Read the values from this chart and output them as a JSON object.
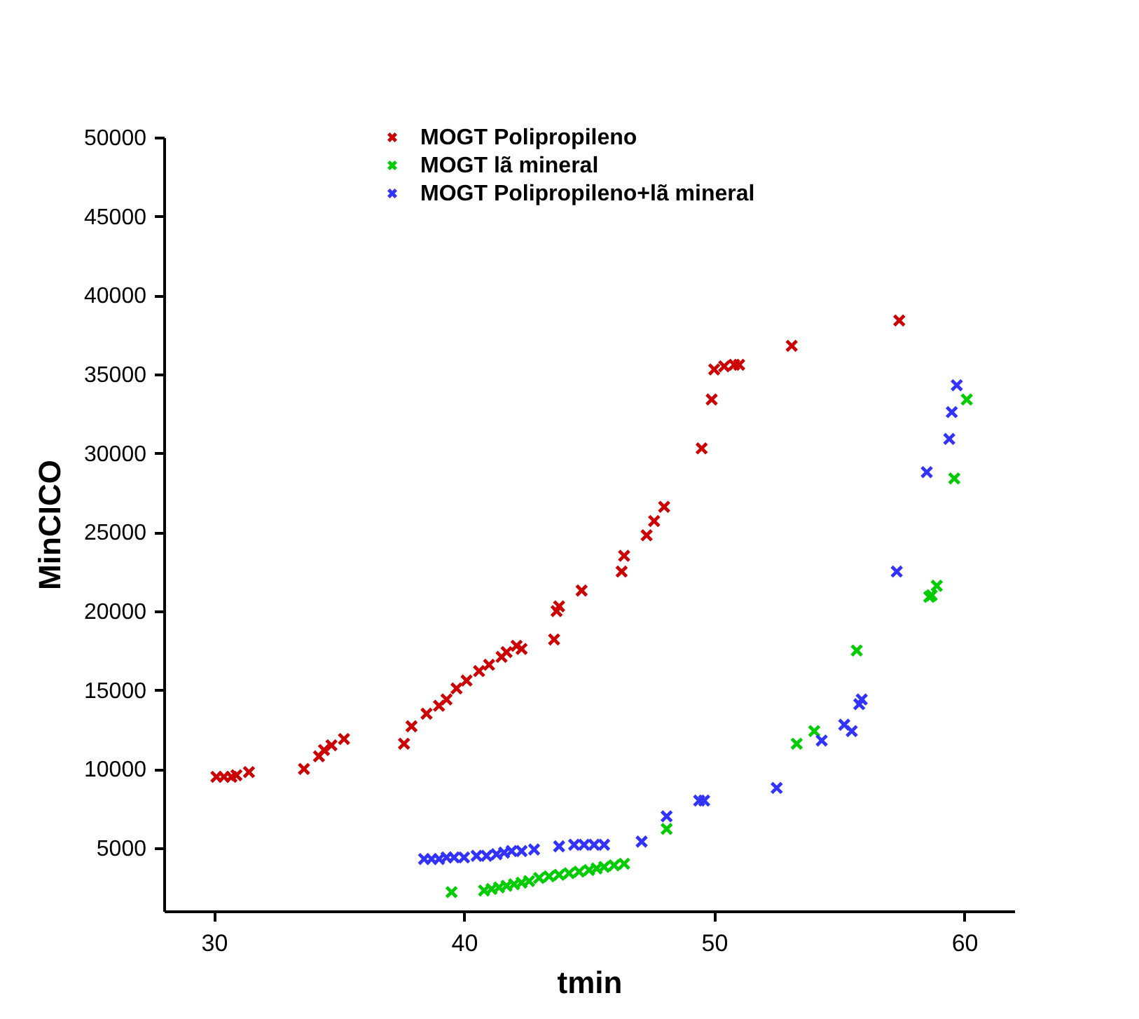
{
  "chart_data": {
    "type": "scatter",
    "xlabel": "tmin",
    "ylabel": "MinCICO",
    "xlim": [
      28,
      62
    ],
    "ylim": [
      1000,
      50000
    ],
    "xticks": [
      30,
      40,
      50,
      60
    ],
    "yticks": [
      5000,
      10000,
      15000,
      20000,
      25000,
      30000,
      35000,
      40000,
      45000,
      50000
    ],
    "grid": false,
    "legend": "top",
    "marker": "cross",
    "series": [
      {
        "name": "MOGT Polipropileno",
        "color": "#cc0000",
        "x": [
          30.1,
          30.4,
          30.7,
          30.9,
          31.4,
          33.6,
          34.2,
          34.4,
          34.7,
          35.2,
          37.6,
          37.9,
          38.5,
          39,
          39.3,
          39.7,
          40.1,
          40.6,
          41,
          41.5,
          41.7,
          42.1,
          42.3,
          43.6,
          43.7,
          43.8,
          44.7,
          46.3,
          46.4,
          47.3,
          47.6,
          48,
          49.5,
          49.9,
          50,
          50.4,
          50.8,
          51,
          53.1,
          57.4
        ],
        "values": [
          9500,
          9500,
          9500,
          9600,
          9800,
          10000,
          10800,
          11200,
          11500,
          11900,
          11600,
          12700,
          13500,
          14000,
          14400,
          15100,
          15600,
          16200,
          16600,
          17100,
          17400,
          17800,
          17600,
          18200,
          20000,
          20300,
          21300,
          22500,
          23500,
          24800,
          25700,
          26600,
          30300,
          33400,
          35300,
          35500,
          35600,
          35600,
          36800,
          38400
        ]
      },
      {
        "name": "MOGT lã mineral",
        "color": "#00cc00",
        "x": [
          39.5,
          40.8,
          41.1,
          41.4,
          41.7,
          42,
          42.3,
          42.6,
          43,
          43.4,
          43.8,
          44.2,
          44.6,
          45,
          45.3,
          45.6,
          46,
          46.4,
          48.1,
          53.3,
          54,
          55.7,
          58.6,
          58.7,
          58.9,
          59.6,
          60.1
        ],
        "values": [
          2200,
          2300,
          2400,
          2500,
          2600,
          2700,
          2800,
          2900,
          3100,
          3200,
          3300,
          3400,
          3500,
          3600,
          3700,
          3800,
          3900,
          4000,
          6200,
          11600,
          12400,
          17500,
          20900,
          21000,
          21600,
          28400,
          33400
        ]
      },
      {
        "name": "MOGT Polipropileno+lã mineral",
        "color": "#3333ff",
        "x": [
          38.4,
          38.7,
          39,
          39.3,
          39.6,
          40,
          40.5,
          40.9,
          41.3,
          41.6,
          41.9,
          42.3,
          42.8,
          43.8,
          44.4,
          44.8,
          45.2,
          45.6,
          47.1,
          48.1,
          49.4,
          49.6,
          52.5,
          54.3,
          55.2,
          55.5,
          55.8,
          55.9,
          57.3,
          58.5,
          59.4,
          59.5,
          59.7
        ],
        "values": [
          4300,
          4300,
          4300,
          4400,
          4400,
          4400,
          4500,
          4500,
          4600,
          4700,
          4800,
          4800,
          4900,
          5100,
          5200,
          5200,
          5200,
          5200,
          5400,
          7000,
          8000,
          8000,
          8800,
          11800,
          12800,
          12400,
          14100,
          14400,
          22500,
          28800,
          30900,
          32600,
          34300
        ]
      }
    ]
  }
}
